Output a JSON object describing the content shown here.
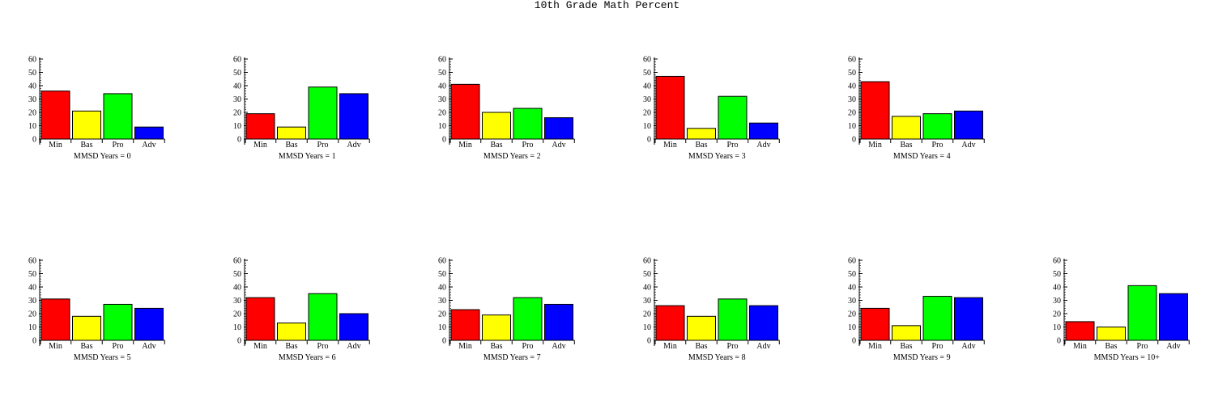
{
  "title": "10th Grade Math Percent",
  "colors": {
    "Min": "#ff0000",
    "Bas": "#ffff00",
    "Pro": "#00ff00",
    "Adv": "#0000ff",
    "stroke": "#000000"
  },
  "chart_data": [
    {
      "type": "bar",
      "label": "MMSD Years = 0",
      "categories": [
        "Min",
        "Bas",
        "Pro",
        "Adv"
      ],
      "values": [
        36,
        21,
        34,
        9
      ],
      "ylim": [
        0,
        60
      ],
      "yticks": [
        0,
        10,
        20,
        30,
        40,
        50,
        60
      ]
    },
    {
      "type": "bar",
      "label": "MMSD Years = 1",
      "categories": [
        "Min",
        "Bas",
        "Pro",
        "Adv"
      ],
      "values": [
        19,
        9,
        39,
        34
      ],
      "ylim": [
        0,
        60
      ],
      "yticks": [
        0,
        10,
        20,
        30,
        40,
        50,
        60
      ]
    },
    {
      "type": "bar",
      "label": "MMSD Years = 2",
      "categories": [
        "Min",
        "Bas",
        "Pro",
        "Adv"
      ],
      "values": [
        41,
        20,
        23,
        16
      ],
      "ylim": [
        0,
        60
      ],
      "yticks": [
        0,
        10,
        20,
        30,
        40,
        50,
        60
      ]
    },
    {
      "type": "bar",
      "label": "MMSD Years = 3",
      "categories": [
        "Min",
        "Bas",
        "Pro",
        "Adv"
      ],
      "values": [
        47,
        8,
        32,
        12
      ],
      "ylim": [
        0,
        60
      ],
      "yticks": [
        0,
        10,
        20,
        30,
        40,
        50,
        60
      ]
    },
    {
      "type": "bar",
      "label": "MMSD Years = 4",
      "categories": [
        "Min",
        "Bas",
        "Pro",
        "Adv"
      ],
      "values": [
        43,
        17,
        19,
        21
      ],
      "ylim": [
        0,
        60
      ],
      "yticks": [
        0,
        10,
        20,
        30,
        40,
        50,
        60
      ]
    },
    {
      "type": "bar",
      "label": "MMSD Years = 5",
      "categories": [
        "Min",
        "Bas",
        "Pro",
        "Adv"
      ],
      "values": [
        31,
        18,
        27,
        24
      ],
      "ylim": [
        0,
        60
      ],
      "yticks": [
        0,
        10,
        20,
        30,
        40,
        50,
        60
      ]
    },
    {
      "type": "bar",
      "label": "MMSD Years = 6",
      "categories": [
        "Min",
        "Bas",
        "Pro",
        "Adv"
      ],
      "values": [
        32,
        13,
        35,
        20
      ],
      "ylim": [
        0,
        60
      ],
      "yticks": [
        0,
        10,
        20,
        30,
        40,
        50,
        60
      ]
    },
    {
      "type": "bar",
      "label": "MMSD Years = 7",
      "categories": [
        "Min",
        "Bas",
        "Pro",
        "Adv"
      ],
      "values": [
        23,
        19,
        32,
        27
      ],
      "ylim": [
        0,
        60
      ],
      "yticks": [
        0,
        10,
        20,
        30,
        40,
        50,
        60
      ]
    },
    {
      "type": "bar",
      "label": "MMSD Years = 8",
      "categories": [
        "Min",
        "Bas",
        "Pro",
        "Adv"
      ],
      "values": [
        26,
        18,
        31,
        26
      ],
      "ylim": [
        0,
        60
      ],
      "yticks": [
        0,
        10,
        20,
        30,
        40,
        50,
        60
      ]
    },
    {
      "type": "bar",
      "label": "MMSD Years = 9",
      "categories": [
        "Min",
        "Bas",
        "Pro",
        "Adv"
      ],
      "values": [
        24,
        11,
        33,
        32
      ],
      "ylim": [
        0,
        60
      ],
      "yticks": [
        0,
        10,
        20,
        30,
        40,
        50,
        60
      ]
    },
    {
      "type": "bar",
      "label": "MMSD Years = 10+",
      "categories": [
        "Min",
        "Bas",
        "Pro",
        "Adv"
      ],
      "values": [
        14,
        10,
        41,
        35
      ],
      "ylim": [
        0,
        60
      ],
      "yticks": [
        0,
        10,
        20,
        30,
        40,
        50,
        60
      ]
    }
  ]
}
